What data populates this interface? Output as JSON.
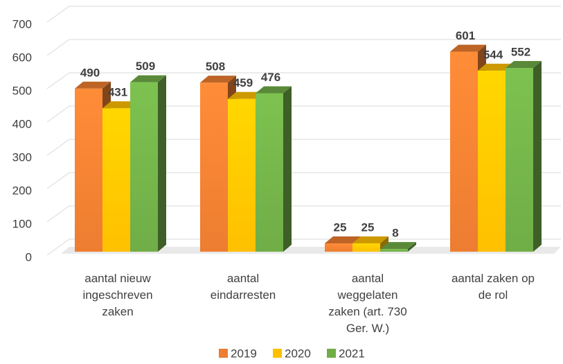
{
  "chart_data": {
    "type": "bar3d",
    "categories": [
      "aantal nieuw ingeschreven zaken",
      "aantal eindarresten",
      "aantal weggelaten zaken (art. 730 Ger. W.)",
      "aantal zaken op de rol"
    ],
    "series": [
      {
        "name": "2019",
        "color": "#ed7d31",
        "values": [
          490,
          508,
          25,
          601
        ]
      },
      {
        "name": "2020",
        "color": "#ffc000",
        "values": [
          431,
          459,
          25,
          544
        ]
      },
      {
        "name": "2021",
        "color": "#70ad47",
        "values": [
          509,
          476,
          8,
          552
        ]
      }
    ],
    "ylim": [
      0,
      700
    ],
    "yticks": [
      0,
      100,
      200,
      300,
      400,
      500,
      600,
      700
    ],
    "grid": true,
    "legend": "bottom"
  }
}
